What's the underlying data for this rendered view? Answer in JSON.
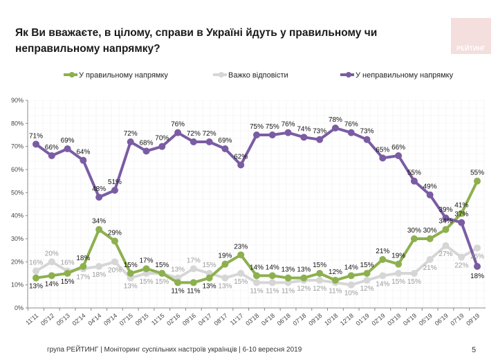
{
  "title": "Як Ви вважаєте, в цілому, справи в Україні йдуть у правильному чи неправильному напрямку?",
  "logo_text": "РЕЙТИНГ",
  "footer": "група РЕЙТИНГ | Моніторинг суспільних настроїв українців | 6-10 вересня 2019",
  "page_number": "5",
  "chart_data": {
    "type": "line",
    "ylim": [
      0,
      90
    ],
    "yticks": [
      "0%",
      "10%",
      "20%",
      "30%",
      "40%",
      "50%",
      "60%",
      "70%",
      "80%",
      "90%"
    ],
    "grid": true,
    "legend_placement": "top",
    "categories": [
      "11'11",
      "05'12",
      "05'13",
      "02'14",
      "04'14",
      "09'14",
      "07'15",
      "09'15",
      "11'15",
      "02'16",
      "09'16",
      "04'17",
      "08'17",
      "11'17",
      "03'18",
      "04'18",
      "06'18",
      "07'18",
      "09'18",
      "10'18",
      "12'18",
      "01'19",
      "02'19",
      "03'19",
      "04'19",
      "05'19",
      "06'19",
      "07'19",
      "09'19"
    ],
    "series": [
      {
        "name": "У правильному напрямку",
        "color": "#8db04e",
        "label_color": "#111111",
        "values": [
          13,
          14,
          15,
          18,
          34,
          29,
          15,
          17,
          15,
          11,
          11,
          13,
          19,
          23,
          14,
          14,
          13,
          13,
          15,
          12,
          14,
          15,
          21,
          19,
          30,
          30,
          34,
          41,
          55
        ]
      },
      {
        "name": "Важко відповісти",
        "color": "#d6d6d6",
        "label_color": "#9a9a9a",
        "values": [
          16,
          20,
          16,
          17,
          18,
          20,
          13,
          15,
          15,
          13,
          17,
          15,
          13,
          15,
          11,
          11,
          11,
          12,
          12,
          11,
          10,
          12,
          14,
          15,
          15,
          21,
          27,
          22,
          26
        ]
      },
      {
        "name": "У неправильному напрямку",
        "color": "#7a5ca3",
        "label_color": "#111111",
        "values": [
          71,
          66,
          69,
          64,
          48,
          51,
          72,
          68,
          70,
          76,
          72,
          72,
          69,
          62,
          75,
          75,
          76,
          74,
          73,
          78,
          76,
          73,
          65,
          66,
          55,
          49,
          39,
          37,
          18
        ]
      }
    ]
  }
}
